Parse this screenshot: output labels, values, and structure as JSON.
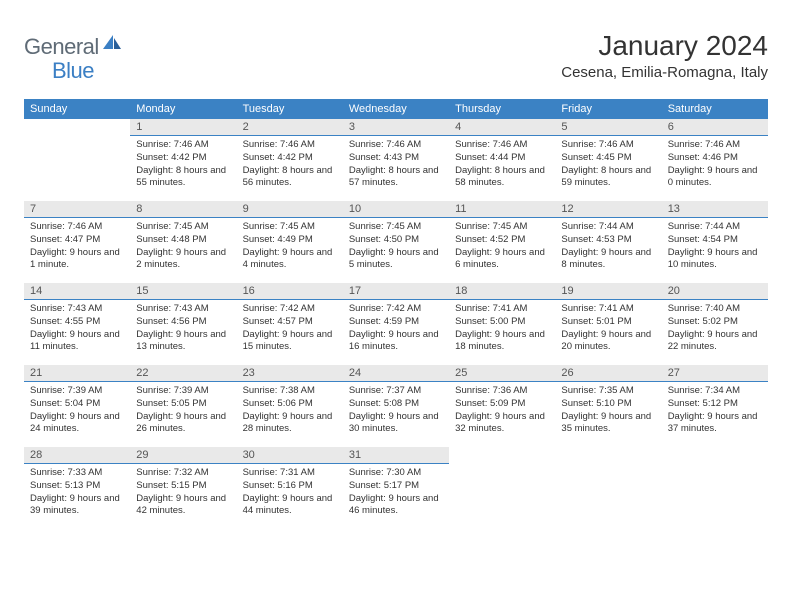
{
  "logo": {
    "part1": "General",
    "part2": "Blue"
  },
  "title": "January 2024",
  "location": "Cesena, Emilia-Romagna, Italy",
  "colors": {
    "header_bg": "#3b82c4",
    "header_text": "#ffffff",
    "daynum_bg": "#e9e9e9",
    "daynum_text": "#555555",
    "body_text": "#333333",
    "logo_gray": "#5f6b76",
    "logo_blue": "#3b7fc4",
    "background": "#ffffff"
  },
  "typography": {
    "title_fontsize": 28,
    "location_fontsize": 15,
    "header_fontsize": 11,
    "daynum_fontsize": 11,
    "cell_fontsize": 9.5,
    "font_family": "Arial"
  },
  "weekdays": [
    "Sunday",
    "Monday",
    "Tuesday",
    "Wednesday",
    "Thursday",
    "Friday",
    "Saturday"
  ],
  "cells": [
    [
      {
        "n": "",
        "sr": "",
        "ss": "",
        "dl": ""
      },
      {
        "n": "1",
        "sr": "Sunrise: 7:46 AM",
        "ss": "Sunset: 4:42 PM",
        "dl": "Daylight: 8 hours and 55 minutes."
      },
      {
        "n": "2",
        "sr": "Sunrise: 7:46 AM",
        "ss": "Sunset: 4:42 PM",
        "dl": "Daylight: 8 hours and 56 minutes."
      },
      {
        "n": "3",
        "sr": "Sunrise: 7:46 AM",
        "ss": "Sunset: 4:43 PM",
        "dl": "Daylight: 8 hours and 57 minutes."
      },
      {
        "n": "4",
        "sr": "Sunrise: 7:46 AM",
        "ss": "Sunset: 4:44 PM",
        "dl": "Daylight: 8 hours and 58 minutes."
      },
      {
        "n": "5",
        "sr": "Sunrise: 7:46 AM",
        "ss": "Sunset: 4:45 PM",
        "dl": "Daylight: 8 hours and 59 minutes."
      },
      {
        "n": "6",
        "sr": "Sunrise: 7:46 AM",
        "ss": "Sunset: 4:46 PM",
        "dl": "Daylight: 9 hours and 0 minutes."
      }
    ],
    [
      {
        "n": "7",
        "sr": "Sunrise: 7:46 AM",
        "ss": "Sunset: 4:47 PM",
        "dl": "Daylight: 9 hours and 1 minute."
      },
      {
        "n": "8",
        "sr": "Sunrise: 7:45 AM",
        "ss": "Sunset: 4:48 PM",
        "dl": "Daylight: 9 hours and 2 minutes."
      },
      {
        "n": "9",
        "sr": "Sunrise: 7:45 AM",
        "ss": "Sunset: 4:49 PM",
        "dl": "Daylight: 9 hours and 4 minutes."
      },
      {
        "n": "10",
        "sr": "Sunrise: 7:45 AM",
        "ss": "Sunset: 4:50 PM",
        "dl": "Daylight: 9 hours and 5 minutes."
      },
      {
        "n": "11",
        "sr": "Sunrise: 7:45 AM",
        "ss": "Sunset: 4:52 PM",
        "dl": "Daylight: 9 hours and 6 minutes."
      },
      {
        "n": "12",
        "sr": "Sunrise: 7:44 AM",
        "ss": "Sunset: 4:53 PM",
        "dl": "Daylight: 9 hours and 8 minutes."
      },
      {
        "n": "13",
        "sr": "Sunrise: 7:44 AM",
        "ss": "Sunset: 4:54 PM",
        "dl": "Daylight: 9 hours and 10 minutes."
      }
    ],
    [
      {
        "n": "14",
        "sr": "Sunrise: 7:43 AM",
        "ss": "Sunset: 4:55 PM",
        "dl": "Daylight: 9 hours and 11 minutes."
      },
      {
        "n": "15",
        "sr": "Sunrise: 7:43 AM",
        "ss": "Sunset: 4:56 PM",
        "dl": "Daylight: 9 hours and 13 minutes."
      },
      {
        "n": "16",
        "sr": "Sunrise: 7:42 AM",
        "ss": "Sunset: 4:57 PM",
        "dl": "Daylight: 9 hours and 15 minutes."
      },
      {
        "n": "17",
        "sr": "Sunrise: 7:42 AM",
        "ss": "Sunset: 4:59 PM",
        "dl": "Daylight: 9 hours and 16 minutes."
      },
      {
        "n": "18",
        "sr": "Sunrise: 7:41 AM",
        "ss": "Sunset: 5:00 PM",
        "dl": "Daylight: 9 hours and 18 minutes."
      },
      {
        "n": "19",
        "sr": "Sunrise: 7:41 AM",
        "ss": "Sunset: 5:01 PM",
        "dl": "Daylight: 9 hours and 20 minutes."
      },
      {
        "n": "20",
        "sr": "Sunrise: 7:40 AM",
        "ss": "Sunset: 5:02 PM",
        "dl": "Daylight: 9 hours and 22 minutes."
      }
    ],
    [
      {
        "n": "21",
        "sr": "Sunrise: 7:39 AM",
        "ss": "Sunset: 5:04 PM",
        "dl": "Daylight: 9 hours and 24 minutes."
      },
      {
        "n": "22",
        "sr": "Sunrise: 7:39 AM",
        "ss": "Sunset: 5:05 PM",
        "dl": "Daylight: 9 hours and 26 minutes."
      },
      {
        "n": "23",
        "sr": "Sunrise: 7:38 AM",
        "ss": "Sunset: 5:06 PM",
        "dl": "Daylight: 9 hours and 28 minutes."
      },
      {
        "n": "24",
        "sr": "Sunrise: 7:37 AM",
        "ss": "Sunset: 5:08 PM",
        "dl": "Daylight: 9 hours and 30 minutes."
      },
      {
        "n": "25",
        "sr": "Sunrise: 7:36 AM",
        "ss": "Sunset: 5:09 PM",
        "dl": "Daylight: 9 hours and 32 minutes."
      },
      {
        "n": "26",
        "sr": "Sunrise: 7:35 AM",
        "ss": "Sunset: 5:10 PM",
        "dl": "Daylight: 9 hours and 35 minutes."
      },
      {
        "n": "27",
        "sr": "Sunrise: 7:34 AM",
        "ss": "Sunset: 5:12 PM",
        "dl": "Daylight: 9 hours and 37 minutes."
      }
    ],
    [
      {
        "n": "28",
        "sr": "Sunrise: 7:33 AM",
        "ss": "Sunset: 5:13 PM",
        "dl": "Daylight: 9 hours and 39 minutes."
      },
      {
        "n": "29",
        "sr": "Sunrise: 7:32 AM",
        "ss": "Sunset: 5:15 PM",
        "dl": "Daylight: 9 hours and 42 minutes."
      },
      {
        "n": "30",
        "sr": "Sunrise: 7:31 AM",
        "ss": "Sunset: 5:16 PM",
        "dl": "Daylight: 9 hours and 44 minutes."
      },
      {
        "n": "31",
        "sr": "Sunrise: 7:30 AM",
        "ss": "Sunset: 5:17 PM",
        "dl": "Daylight: 9 hours and 46 minutes."
      },
      {
        "n": "",
        "sr": "",
        "ss": "",
        "dl": ""
      },
      {
        "n": "",
        "sr": "",
        "ss": "",
        "dl": ""
      },
      {
        "n": "",
        "sr": "",
        "ss": "",
        "dl": ""
      }
    ]
  ]
}
